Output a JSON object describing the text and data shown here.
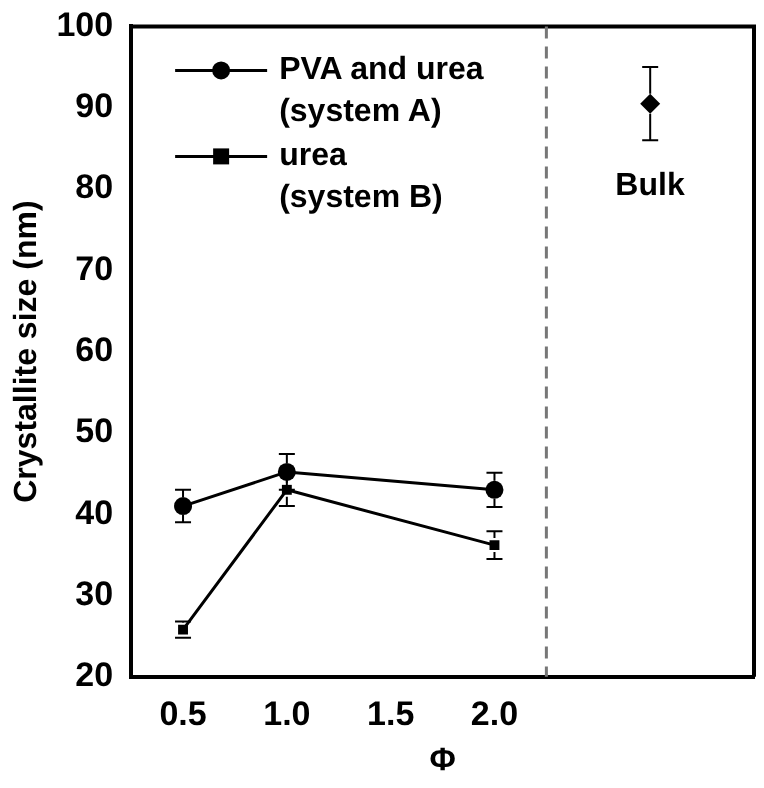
{
  "chart_data": {
    "type": "line",
    "xlabel": "Φ",
    "ylabel": "Crystallite size (nm)",
    "xlim": [
      0.25,
      3.25
    ],
    "xticks": [
      {
        "value": 0.5,
        "label": "0.5"
      },
      {
        "value": 1,
        "label": "1.0"
      },
      {
        "value": 1.5,
        "label": "1.5"
      },
      {
        "value": 2,
        "label": "2.0"
      }
    ],
    "ylim": [
      20,
      100
    ],
    "yticks": [
      20,
      30,
      40,
      50,
      60,
      70,
      80,
      90,
      100
    ],
    "grid": false,
    "legend": "top left",
    "series": [
      {
        "name": "PVA and urea (system A)",
        "color": "#000000",
        "marker": "circle",
        "x": [
          0.5,
          1,
          2
        ],
        "values": [
          41,
          45.2,
          43
        ],
        "errors": [
          2,
          2.2,
          2.1
        ]
      },
      {
        "name": "urea (system B)",
        "color": "#000000",
        "marker": "square",
        "x": [
          0.5,
          1,
          2
        ],
        "values": [
          25.8,
          43,
          36.2
        ],
        "errors": [
          1,
          2,
          1.7
        ]
      },
      {
        "type": "scatter",
        "color": "#000000",
        "marker": "diamond",
        "x": [
          2.75
        ],
        "values": [
          90.5
        ],
        "errors": [
          [
            86,
            95
          ]
        ]
      }
    ],
    "ref_lines": [
      {
        "axis": "x",
        "value": 2.25,
        "color": "#777777",
        "line_style": "dashed"
      }
    ],
    "annotations": [
      "Bulk"
    ]
  }
}
